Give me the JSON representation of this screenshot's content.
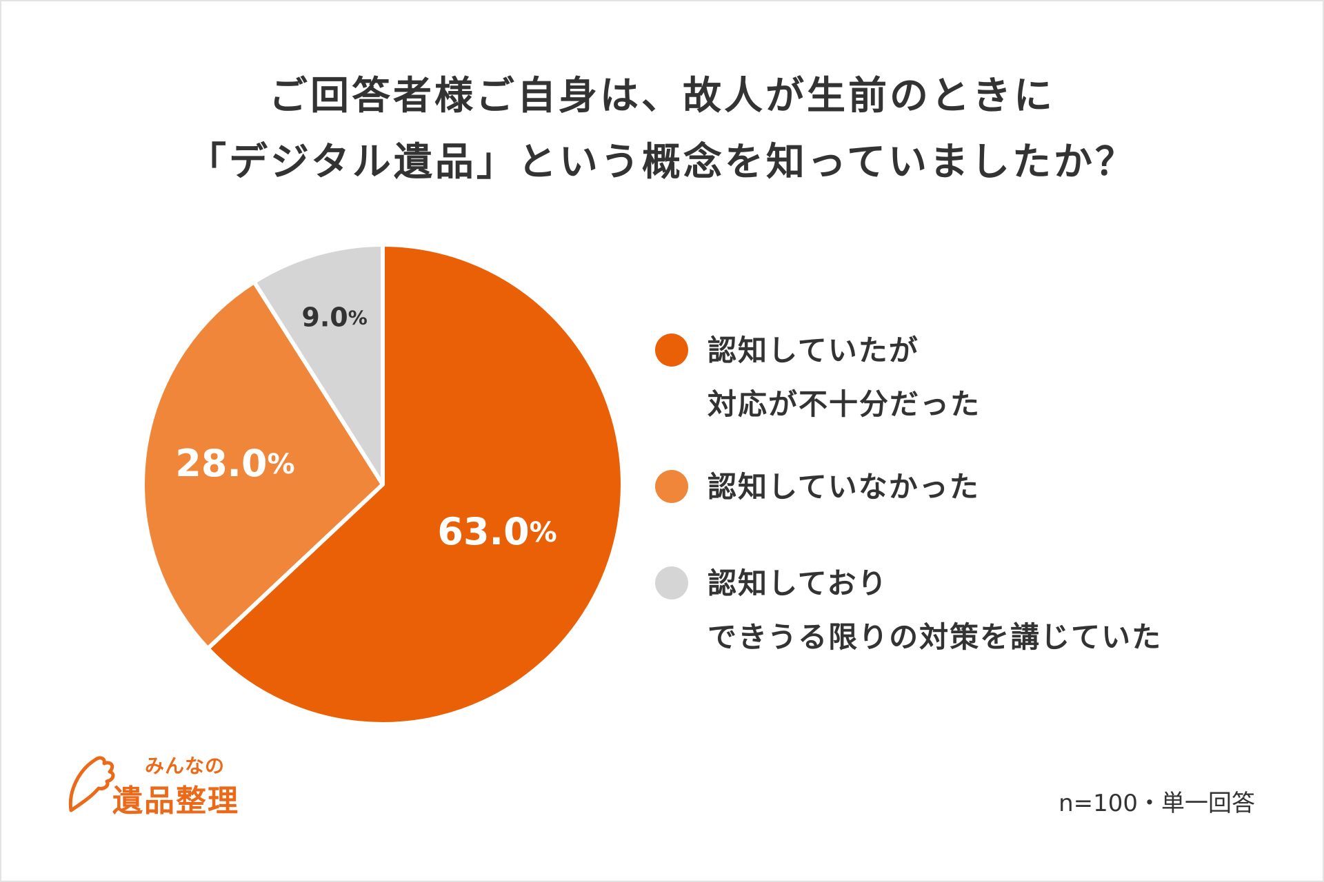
{
  "title": {
    "line1": "ご回答者様ご自身は、故人が生前のときに",
    "line2": "「デジタル遺品」という概念を知っていましたか？"
  },
  "chart_data": {
    "type": "pie",
    "title": "ご回答者様ご自身は、故人が生前のときに「デジタル遺品」という概念を知っていましたか？",
    "slices": [
      {
        "label_lines": [
          "認知していたが",
          "対応が不十分だった"
        ],
        "value": 63.0,
        "display_main": "63.0",
        "display_suffix": "%",
        "color": "#ea6007"
      },
      {
        "label_lines": [
          "認知していなかった"
        ],
        "value": 28.0,
        "display_main": "28.0",
        "display_suffix": "%",
        "color": "#f08639"
      },
      {
        "label_lines": [
          "認知しており",
          "できうる限りの対策を講じていた"
        ],
        "value": 9.0,
        "display_main": "9.0",
        "display_suffix": "%",
        "color": "#d5d5d5"
      }
    ],
    "start_angle_deg": 0,
    "direction": "clockwise",
    "legend_position": "right"
  },
  "footnote": "n=100・単一回答",
  "logo": {
    "small_text": "みんなの",
    "large_text": "遺品整理",
    "color": "#ea6a19"
  }
}
